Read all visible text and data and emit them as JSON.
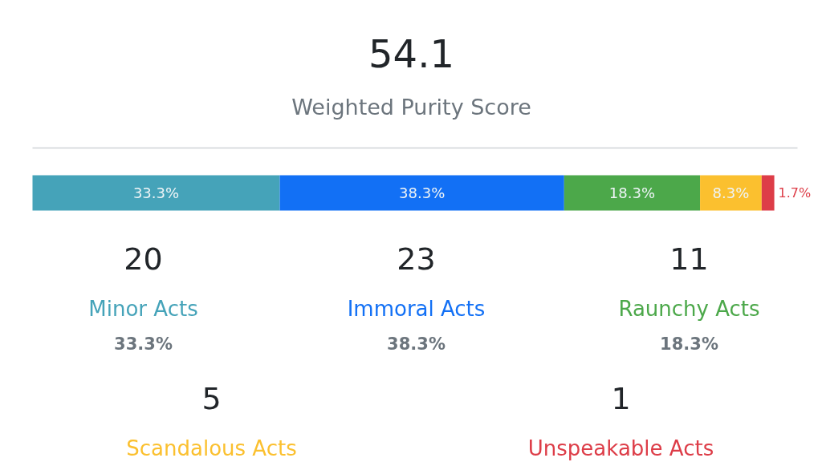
{
  "chart_data": [
    {
      "type": "bar",
      "title": "54.1",
      "subtitle": "Weighted Purity Score",
      "orientation": "horizontal",
      "stacked": true,
      "categories": [
        null
      ],
      "xlim": [
        0,
        100
      ],
      "tick_labels": false,
      "series": [
        {
          "color": "#45a3b9",
          "values": [
            33.3
          ],
          "value_labels": [
            "33.3%"
          ]
        },
        {
          "color": "#1270f5",
          "values": [
            38.3
          ],
          "value_labels": [
            "38.3%"
          ]
        },
        {
          "color": "#4ca84a",
          "values": [
            18.3
          ],
          "value_labels": [
            "18.3%"
          ]
        },
        {
          "color": "#fbc02f",
          "values": [
            8.3
          ],
          "value_labels": [
            "8.3%"
          ]
        },
        {
          "color": "#dd3d48",
          "values": [
            1.7
          ],
          "value_labels": [
            "1.7%"
          ]
        }
      ]
    },
    {
      "type": "other",
      "categories": [
        "Minor Acts",
        "Immoral Acts",
        "Raunchy Acts",
        "Scandalous Acts",
        "Unspeakable Acts"
      ],
      "values": [
        20,
        23,
        11,
        5,
        1
      ],
      "data_labels": true,
      "colors": [
        "#45a3b9",
        "#1270f5",
        "#4ca84a",
        "#fbc02f",
        "#dd3d48"
      ],
      "annotations": [
        "33.3%",
        "38.3%",
        "18.3%"
      ]
    }
  ]
}
